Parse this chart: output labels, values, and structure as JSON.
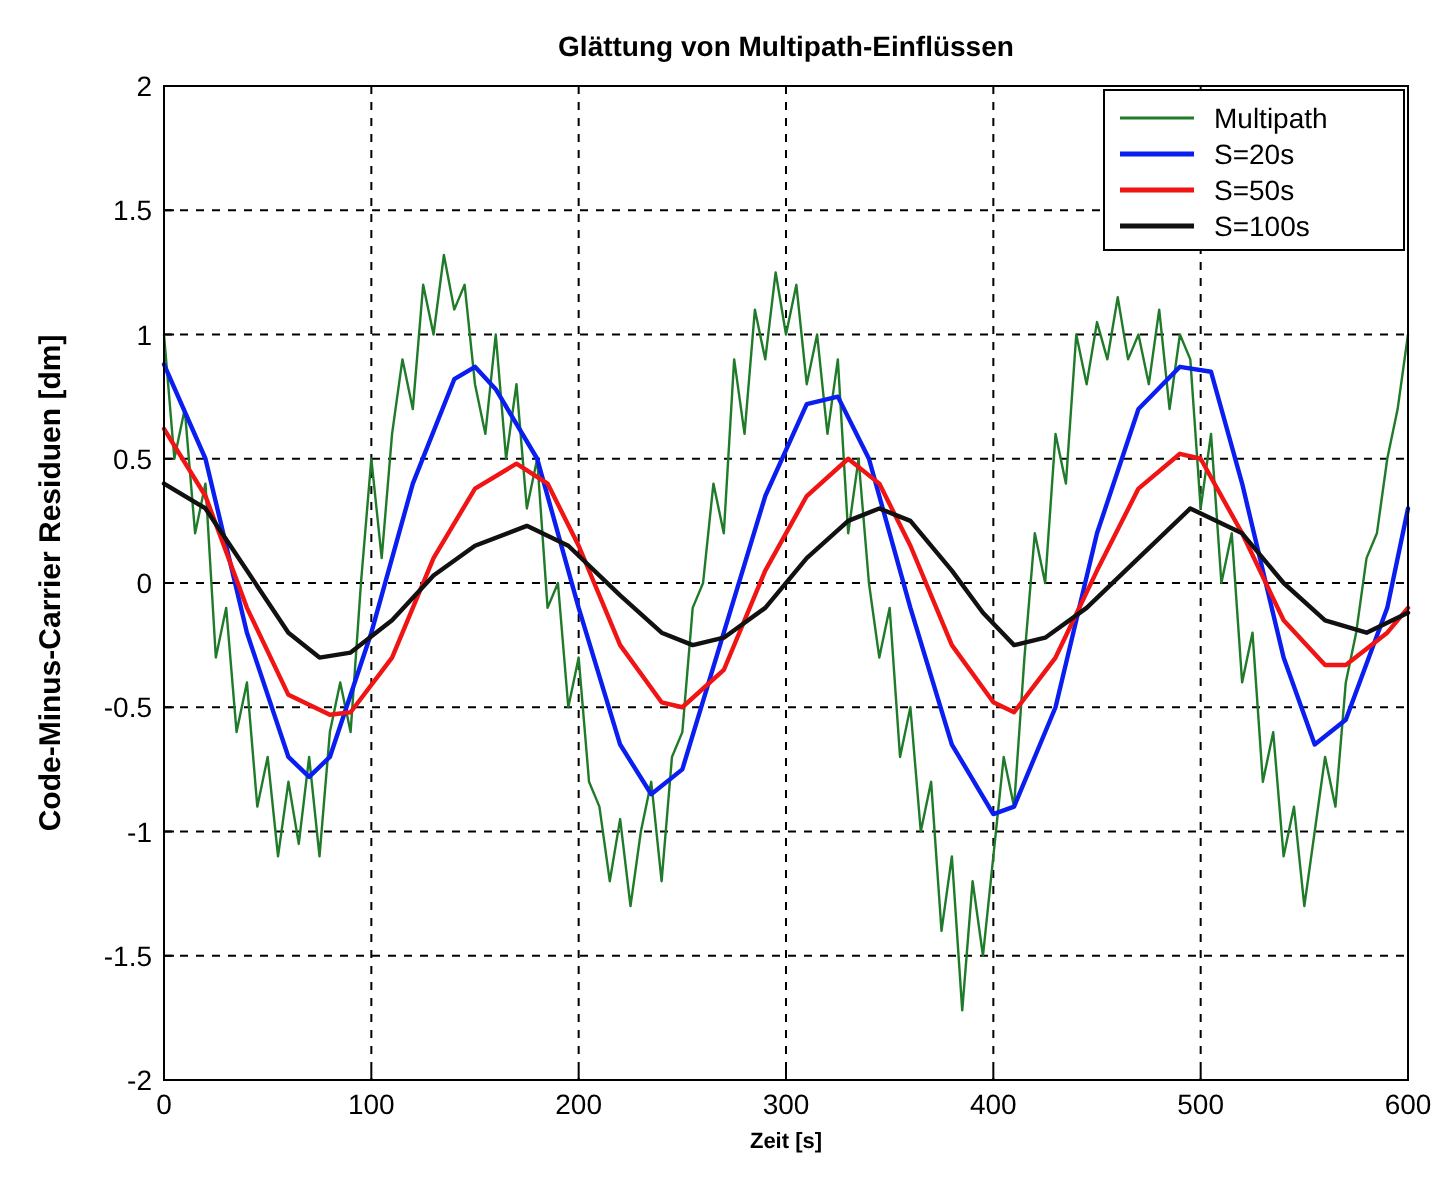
{
  "chart_data": {
    "type": "line",
    "title": "Glättung von Multipath-Einflüssen",
    "xlabel": "Zeit [s]",
    "ylabel": "Code-Minus-Carrier Residuen [dm]",
    "xlim": [
      0,
      600
    ],
    "xticks": [
      0,
      100,
      200,
      300,
      400,
      500,
      600
    ],
    "ylim": [
      -2,
      2
    ],
    "yticks": [
      -2,
      -1.5,
      -1,
      -0.5,
      0,
      0.5,
      1,
      1.5,
      2
    ],
    "grid": true,
    "legend": "top right",
    "line_style": "solid",
    "series": [
      {
        "name": "Multipath",
        "color": "#1f7a2a",
        "x": [
          0,
          5,
          10,
          15,
          20,
          25,
          30,
          35,
          40,
          45,
          50,
          55,
          60,
          65,
          70,
          75,
          80,
          85,
          90,
          95,
          100,
          105,
          110,
          115,
          120,
          125,
          130,
          135,
          140,
          145,
          150,
          155,
          160,
          165,
          170,
          175,
          180,
          185,
          190,
          195,
          200,
          205,
          210,
          215,
          220,
          225,
          230,
          235,
          240,
          245,
          250,
          255,
          260,
          265,
          270,
          275,
          280,
          285,
          290,
          295,
          300,
          305,
          310,
          315,
          320,
          325,
          330,
          335,
          340,
          345,
          350,
          355,
          360,
          365,
          370,
          375,
          380,
          385,
          390,
          395,
          400,
          405,
          410,
          415,
          420,
          425,
          430,
          435,
          440,
          445,
          450,
          455,
          460,
          465,
          470,
          475,
          480,
          485,
          490,
          495,
          500,
          505,
          510,
          515,
          520,
          525,
          530,
          535,
          540,
          545,
          550,
          555,
          560,
          565,
          570,
          575,
          580,
          585,
          590,
          595,
          600
        ],
        "values": [
          1.0,
          0.5,
          0.7,
          0.2,
          0.4,
          -0.3,
          -0.1,
          -0.6,
          -0.4,
          -0.9,
          -0.7,
          -1.1,
          -0.8,
          -1.05,
          -0.7,
          -1.1,
          -0.6,
          -0.4,
          -0.6,
          0.0,
          0.5,
          0.1,
          0.6,
          0.9,
          0.7,
          1.2,
          1.0,
          1.32,
          1.1,
          1.2,
          0.8,
          0.6,
          1.0,
          0.5,
          0.8,
          0.3,
          0.5,
          -0.1,
          0.0,
          -0.5,
          -0.3,
          -0.8,
          -0.9,
          -1.2,
          -0.95,
          -1.3,
          -1.0,
          -0.8,
          -1.2,
          -0.7,
          -0.6,
          -0.1,
          0.0,
          0.4,
          0.2,
          0.9,
          0.6,
          1.1,
          0.9,
          1.25,
          1.0,
          1.2,
          0.8,
          1.0,
          0.6,
          0.9,
          0.2,
          0.5,
          0.0,
          -0.3,
          -0.1,
          -0.7,
          -0.5,
          -1.0,
          -0.8,
          -1.4,
          -1.1,
          -1.72,
          -1.2,
          -1.5,
          -1.1,
          -0.7,
          -0.9,
          -0.3,
          0.2,
          0.0,
          0.6,
          0.4,
          1.0,
          0.8,
          1.05,
          0.9,
          1.15,
          0.9,
          1.0,
          0.8,
          1.1,
          0.7,
          1.0,
          0.9,
          0.3,
          0.6,
          0.0,
          0.2,
          -0.4,
          -0.2,
          -0.8,
          -0.6,
          -1.1,
          -0.9,
          -1.3,
          -1.0,
          -0.7,
          -0.9,
          -0.4,
          -0.2,
          0.1,
          0.2,
          0.5,
          0.7,
          1.0
        ]
      },
      {
        "name": "S=20s",
        "color": "#0a1ef0",
        "x": [
          0,
          20,
          40,
          60,
          70,
          80,
          100,
          120,
          140,
          150,
          160,
          180,
          200,
          220,
          235,
          250,
          270,
          290,
          310,
          325,
          340,
          360,
          380,
          400,
          410,
          430,
          450,
          470,
          490,
          505,
          520,
          540,
          555,
          570,
          590,
          600
        ],
        "values": [
          0.88,
          0.5,
          -0.2,
          -0.7,
          -0.78,
          -0.7,
          -0.2,
          0.4,
          0.82,
          0.87,
          0.78,
          0.5,
          -0.1,
          -0.65,
          -0.85,
          -0.75,
          -0.2,
          0.35,
          0.72,
          0.75,
          0.5,
          -0.1,
          -0.65,
          -0.93,
          -0.9,
          -0.5,
          0.2,
          0.7,
          0.87,
          0.85,
          0.4,
          -0.3,
          -0.65,
          -0.55,
          -0.1,
          0.3
        ]
      },
      {
        "name": "S=50s",
        "color": "#f01414",
        "x": [
          0,
          20,
          40,
          60,
          80,
          90,
          110,
          130,
          150,
          170,
          185,
          200,
          220,
          240,
          250,
          270,
          290,
          310,
          330,
          345,
          360,
          380,
          400,
          410,
          430,
          450,
          470,
          490,
          500,
          520,
          540,
          560,
          570,
          590,
          600
        ],
        "values": [
          0.62,
          0.35,
          -0.1,
          -0.45,
          -0.53,
          -0.52,
          -0.3,
          0.1,
          0.38,
          0.48,
          0.4,
          0.15,
          -0.25,
          -0.48,
          -0.5,
          -0.35,
          0.05,
          0.35,
          0.5,
          0.4,
          0.15,
          -0.25,
          -0.48,
          -0.52,
          -0.3,
          0.05,
          0.38,
          0.52,
          0.5,
          0.2,
          -0.15,
          -0.33,
          -0.33,
          -0.2,
          -0.1
        ]
      },
      {
        "name": "S=100s",
        "color": "#111111",
        "x": [
          0,
          20,
          40,
          60,
          75,
          90,
          110,
          130,
          150,
          175,
          195,
          220,
          240,
          255,
          270,
          290,
          310,
          330,
          345,
          360,
          380,
          395,
          410,
          425,
          445,
          470,
          495,
          520,
          540,
          560,
          580,
          600
        ],
        "values": [
          0.4,
          0.3,
          0.05,
          -0.2,
          -0.3,
          -0.28,
          -0.15,
          0.03,
          0.15,
          0.23,
          0.15,
          -0.05,
          -0.2,
          -0.25,
          -0.22,
          -0.1,
          0.1,
          0.25,
          0.3,
          0.25,
          0.05,
          -0.12,
          -0.25,
          -0.22,
          -0.1,
          0.1,
          0.3,
          0.2,
          0.0,
          -0.15,
          -0.2,
          -0.12
        ]
      }
    ]
  }
}
